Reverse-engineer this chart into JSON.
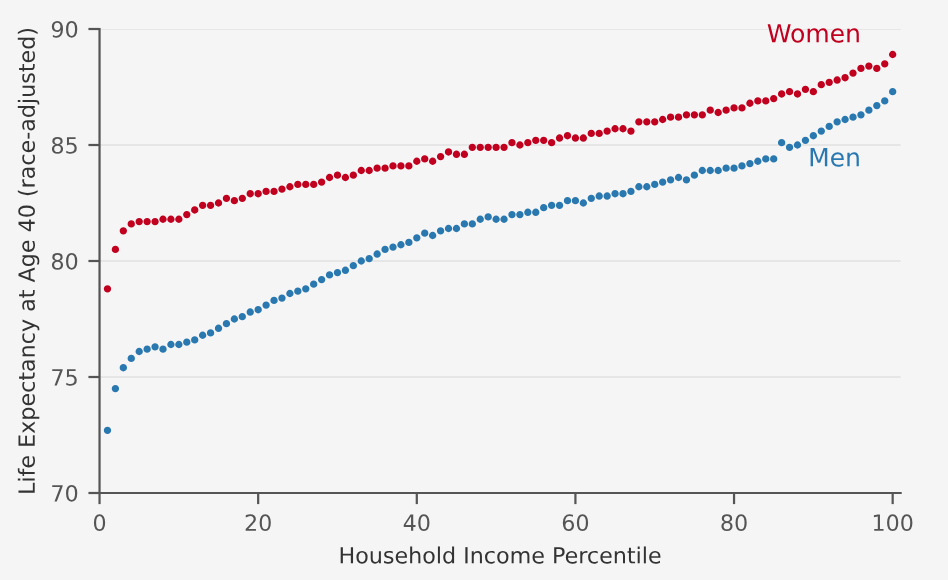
{
  "chart_data": {
    "type": "scatter",
    "xlabel": "Household Income Percentile",
    "ylabel": "Life Expectancy at Age 40 (race-adjusted)",
    "x": [
      1,
      2,
      3,
      4,
      5,
      6,
      7,
      8,
      9,
      10,
      11,
      12,
      13,
      14,
      15,
      16,
      17,
      18,
      19,
      20,
      21,
      22,
      23,
      24,
      25,
      26,
      27,
      28,
      29,
      30,
      31,
      32,
      33,
      34,
      35,
      36,
      37,
      38,
      39,
      40,
      41,
      42,
      43,
      44,
      45,
      46,
      47,
      48,
      49,
      50,
      51,
      52,
      53,
      54,
      55,
      56,
      57,
      58,
      59,
      60,
      61,
      62,
      63,
      64,
      65,
      66,
      67,
      68,
      69,
      70,
      71,
      72,
      73,
      74,
      75,
      76,
      77,
      78,
      79,
      80,
      81,
      82,
      83,
      84,
      85,
      86,
      87,
      88,
      89,
      90,
      91,
      92,
      93,
      94,
      95,
      96,
      97,
      98,
      99,
      100
    ],
    "series": [
      {
        "name": "Women",
        "color": "#c0001e",
        "values": [
          78.8,
          80.5,
          81.3,
          81.6,
          81.7,
          81.7,
          81.7,
          81.8,
          81.8,
          81.8,
          82.0,
          82.2,
          82.4,
          82.4,
          82.5,
          82.7,
          82.6,
          82.7,
          82.9,
          82.9,
          83.0,
          83.0,
          83.1,
          83.2,
          83.3,
          83.3,
          83.3,
          83.4,
          83.6,
          83.7,
          83.6,
          83.7,
          83.9,
          83.9,
          84.0,
          84.0,
          84.1,
          84.1,
          84.1,
          84.3,
          84.4,
          84.3,
          84.5,
          84.7,
          84.6,
          84.6,
          84.9,
          84.9,
          84.9,
          84.9,
          84.9,
          85.1,
          85.0,
          85.1,
          85.2,
          85.2,
          85.1,
          85.3,
          85.4,
          85.3,
          85.3,
          85.5,
          85.5,
          85.6,
          85.7,
          85.7,
          85.6,
          86.0,
          86.0,
          86.0,
          86.1,
          86.2,
          86.2,
          86.3,
          86.3,
          86.3,
          86.5,
          86.4,
          86.5,
          86.6,
          86.6,
          86.8,
          86.9,
          86.9,
          87.0,
          87.2,
          87.3,
          87.2,
          87.4,
          87.3,
          87.6,
          87.7,
          87.8,
          87.9,
          88.1,
          88.3,
          88.4,
          88.3,
          88.5,
          88.9
        ]
      },
      {
        "name": "Men",
        "color": "#2a78b0",
        "values": [
          72.7,
          74.5,
          75.4,
          75.8,
          76.1,
          76.2,
          76.3,
          76.2,
          76.4,
          76.4,
          76.5,
          76.6,
          76.8,
          76.9,
          77.1,
          77.3,
          77.5,
          77.6,
          77.8,
          77.9,
          78.1,
          78.3,
          78.4,
          78.6,
          78.7,
          78.8,
          79.0,
          79.2,
          79.4,
          79.5,
          79.6,
          79.8,
          80.0,
          80.1,
          80.3,
          80.5,
          80.6,
          80.7,
          80.8,
          81.0,
          81.2,
          81.1,
          81.3,
          81.4,
          81.4,
          81.6,
          81.6,
          81.8,
          81.9,
          81.8,
          81.8,
          82.0,
          82.0,
          82.1,
          82.1,
          82.3,
          82.4,
          82.4,
          82.6,
          82.6,
          82.5,
          82.7,
          82.8,
          82.8,
          82.9,
          82.9,
          83.0,
          83.2,
          83.2,
          83.3,
          83.4,
          83.5,
          83.6,
          83.5,
          83.7,
          83.9,
          83.9,
          83.9,
          84.0,
          84.0,
          84.1,
          84.2,
          84.3,
          84.4,
          84.4,
          85.1,
          84.9,
          85.0,
          85.2,
          85.4,
          85.6,
          85.8,
          86.0,
          86.1,
          86.2,
          86.3,
          86.5,
          86.7,
          86.9,
          87.3
        ]
      }
    ],
    "xlim": [
      0,
      101
    ],
    "ylim": [
      70,
      90
    ],
    "xticks": [
      0,
      20,
      40,
      60,
      80,
      100
    ],
    "yticks": [
      70,
      75,
      80,
      85,
      90
    ],
    "grid": "y",
    "legend": false,
    "marker": "circle"
  }
}
